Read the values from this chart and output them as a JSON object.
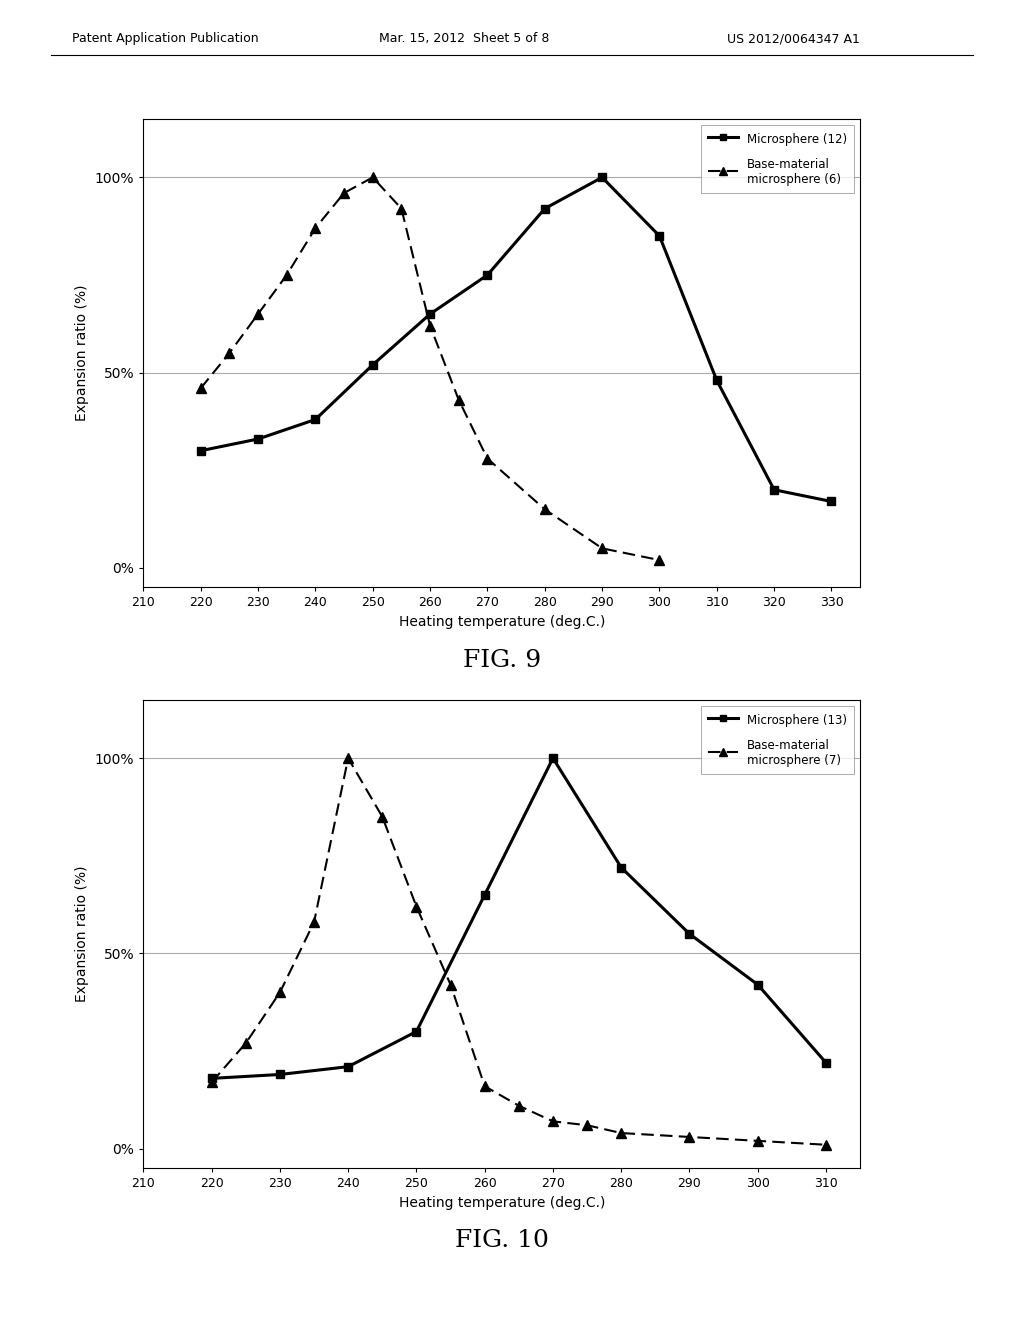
{
  "fig9": {
    "microsphere_x": [
      220,
      230,
      240,
      250,
      260,
      270,
      280,
      290,
      300,
      310,
      320,
      330
    ],
    "microsphere_y": [
      30,
      33,
      38,
      52,
      65,
      75,
      92,
      100,
      85,
      48,
      20,
      17
    ],
    "base_x": [
      220,
      225,
      230,
      235,
      240,
      245,
      250,
      255,
      260,
      265,
      270,
      280,
      290,
      300
    ],
    "base_y": [
      46,
      55,
      65,
      75,
      87,
      96,
      100,
      92,
      62,
      43,
      28,
      15,
      5,
      2
    ],
    "title": "FIG. 9",
    "xlabel": "Heating temperature (deg.C.)",
    "ylabel": "Expansion ratio (%)",
    "legend1": "Microsphere (12)",
    "legend2": "Base-material\nmicrosphere (6)",
    "xmin": 210,
    "xmax": 335,
    "xticks": [
      210,
      220,
      230,
      240,
      250,
      260,
      270,
      280,
      290,
      300,
      310,
      320,
      330
    ]
  },
  "fig10": {
    "microsphere_x": [
      220,
      230,
      240,
      250,
      260,
      270,
      280,
      290,
      300,
      310
    ],
    "microsphere_y": [
      18,
      19,
      21,
      30,
      65,
      100,
      72,
      55,
      42,
      22
    ],
    "base_x": [
      220,
      225,
      230,
      235,
      240,
      245,
      250,
      255,
      260,
      265,
      270,
      275,
      280,
      290,
      300,
      310
    ],
    "base_y": [
      17,
      27,
      40,
      58,
      100,
      85,
      62,
      42,
      16,
      11,
      7,
      6,
      4,
      3,
      2,
      1
    ],
    "title": "FIG. 10",
    "xlabel": "Heating temperature (deg.C.)",
    "ylabel": "Expansion ratio (%)",
    "legend1": "Microsphere (13)",
    "legend2": "Base-material\nmicrosphere (7)",
    "xmin": 210,
    "xmax": 315,
    "xticks": [
      210,
      220,
      230,
      240,
      250,
      260,
      270,
      280,
      290,
      300,
      310
    ]
  },
  "header_left": "Patent Application Publication",
  "header_center": "Mar. 15, 2012  Sheet 5 of 8",
  "header_right": "US 2012/0064347 A1",
  "background_color": "#ffffff",
  "plot_bg": "#ffffff",
  "ytick_labels": [
    "0%",
    "50%",
    "100%"
  ]
}
